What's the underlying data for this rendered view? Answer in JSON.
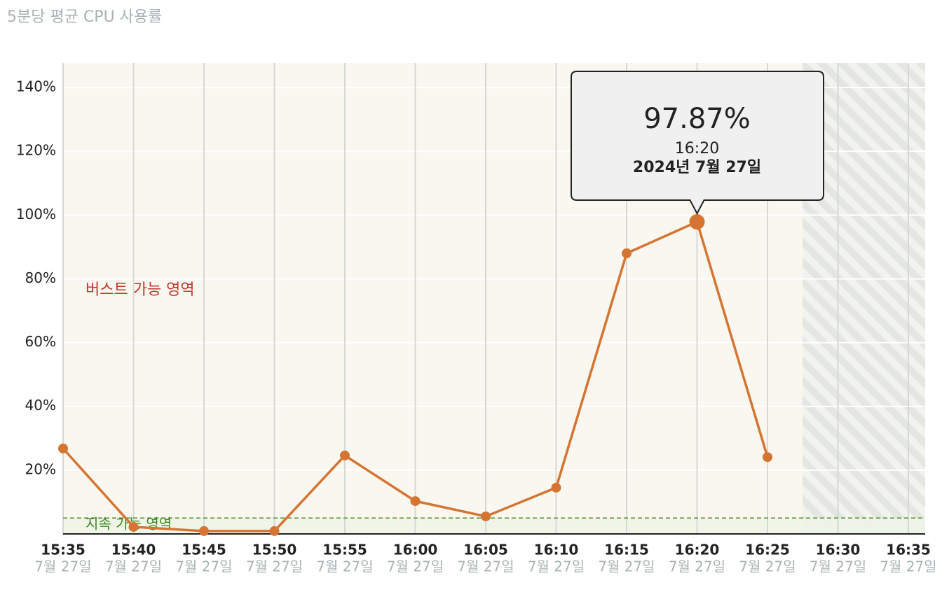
{
  "chart_data": {
    "type": "line",
    "title": "5분당 평균 CPU 사용률",
    "x": [
      "15:35",
      "15:40",
      "15:45",
      "15:50",
      "15:55",
      "16:00",
      "16:05",
      "16:10",
      "16:15",
      "16:20",
      "16:25"
    ],
    "values": [
      26.8,
      2.2,
      0.9,
      0.9,
      24.6,
      10.3,
      5.5,
      14.5,
      88.0,
      97.87,
      24.1
    ],
    "color": "#d57531",
    "xticks": [
      "15:35",
      "15:40",
      "15:45",
      "15:50",
      "15:55",
      "16:00",
      "16:05",
      "16:10",
      "16:15",
      "16:20",
      "16:25",
      "16:30",
      "16:35"
    ],
    "xtick_sublabels": [
      "7월 27일",
      "7월 27일",
      "7월 27일",
      "7월 27일",
      "7월 27일",
      "7월 27일",
      "7월 27일",
      "7월 27일",
      "7월 27일",
      "7월 27일",
      "7월 27일",
      "7월 27일",
      "7월 27일"
    ],
    "ylim": [
      0,
      147.7
    ],
    "yticks": [
      {
        "value": 20,
        "label": "20%"
      },
      {
        "value": 40,
        "label": "40%"
      },
      {
        "value": 60,
        "label": "60%"
      },
      {
        "value": 80,
        "label": "80%"
      },
      {
        "value": 100,
        "label": "100%"
      },
      {
        "value": 120,
        "label": "120%"
      },
      {
        "value": 140,
        "label": "140%"
      }
    ],
    "threshold": 5,
    "burst_label": "버스트 가능 영역",
    "sustain_label": "지속 가능 영역",
    "tooltip": {
      "label": "97.87%",
      "time": "16:20",
      "date": "2024년 7월 27일"
    }
  }
}
